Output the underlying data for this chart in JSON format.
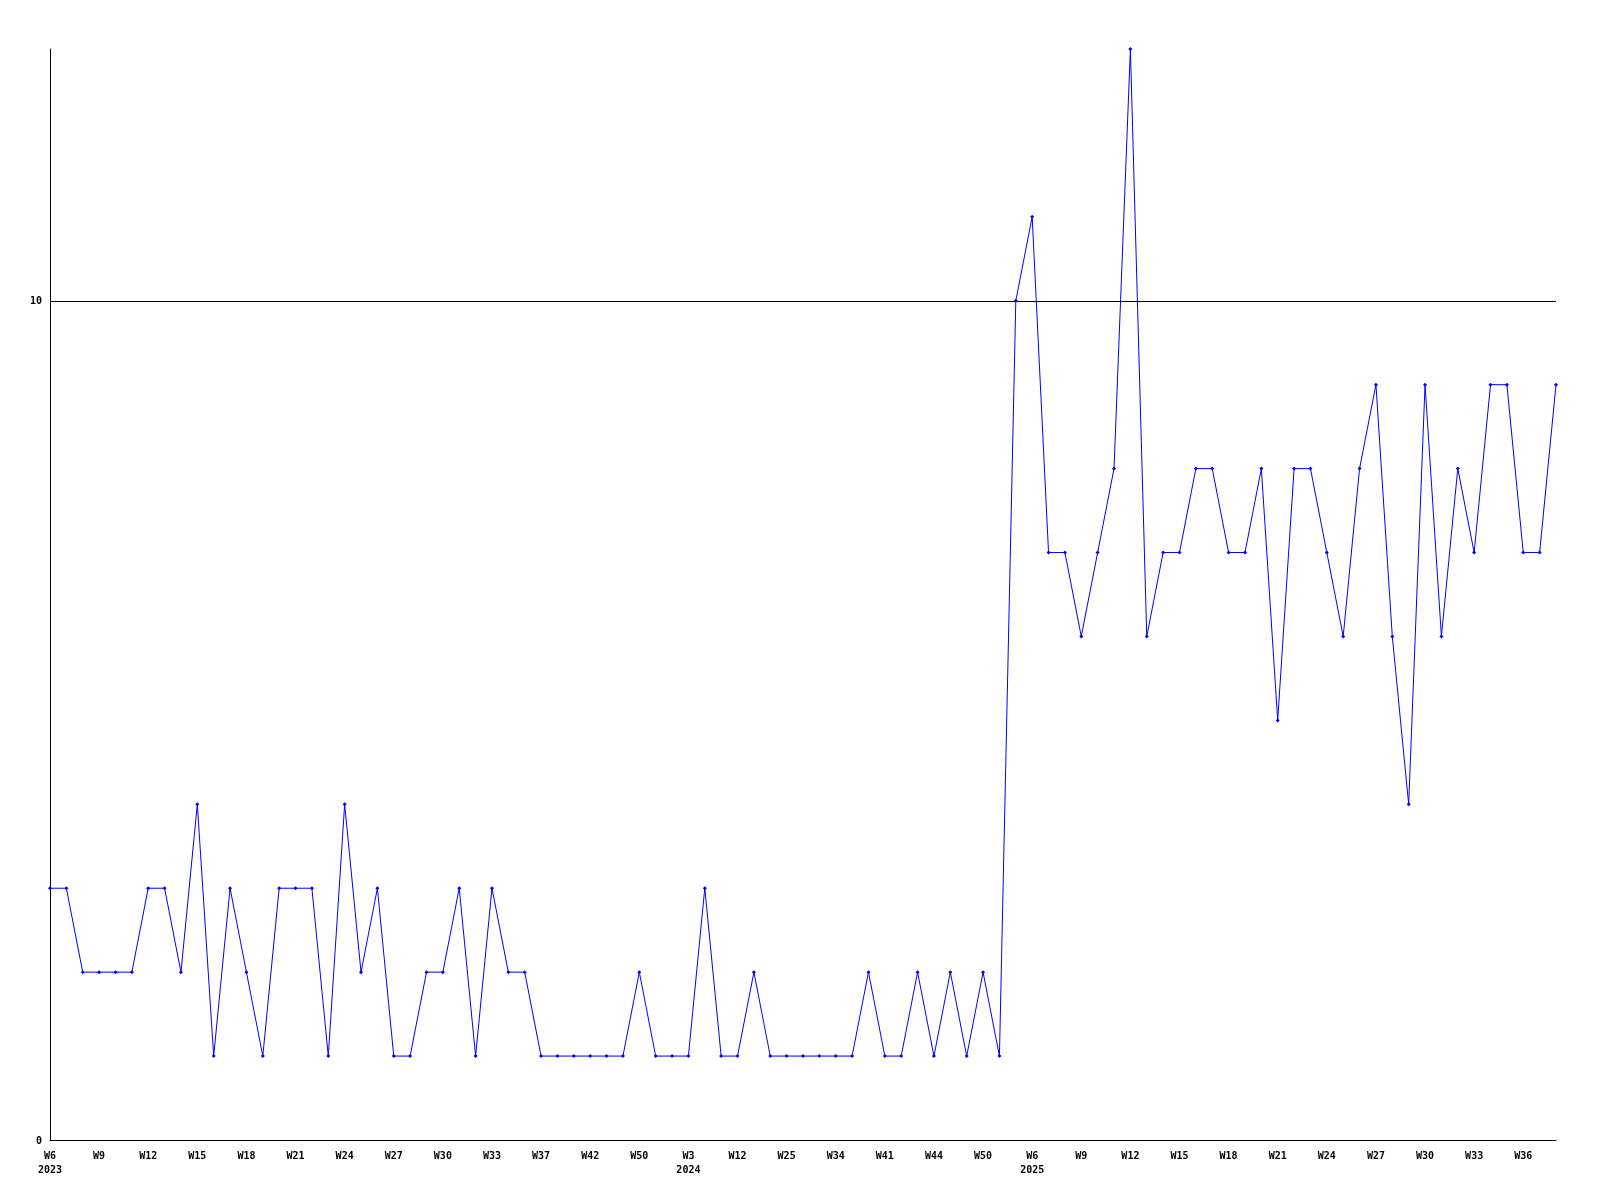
{
  "chart_data": {
    "type": "line",
    "categories": [
      "W6\n2023",
      null,
      null,
      "W9",
      null,
      null,
      "W12",
      null,
      null,
      "W15",
      null,
      null,
      "W18",
      null,
      null,
      "W21",
      null,
      null,
      "W24",
      null,
      null,
      "W27",
      null,
      null,
      "W30",
      null,
      null,
      "W33",
      null,
      null,
      "W37",
      null,
      null,
      "W42",
      null,
      null,
      "W50",
      null,
      null,
      "W3\n2024",
      null,
      null,
      "W12",
      null,
      null,
      "W25",
      null,
      null,
      "W34",
      null,
      null,
      "W41",
      null,
      null,
      "W44",
      null,
      null,
      "W50",
      null,
      null,
      "W6\n2025",
      null,
      null,
      "W9",
      null,
      null,
      "W12",
      null,
      null,
      "W15",
      null,
      null,
      "W18",
      null,
      null,
      "W21",
      null,
      null,
      "W24",
      null,
      null,
      "W27",
      null,
      null,
      "W30",
      null,
      null,
      "W33",
      null,
      null,
      "W36",
      null,
      null
    ],
    "series": [
      {
        "color": "#0000ff",
        "values": [
          3,
          3,
          2,
          2,
          2,
          2,
          3,
          3,
          2,
          4,
          1,
          3,
          2,
          1,
          3,
          3,
          3,
          1,
          4,
          2,
          3,
          1,
          1,
          2,
          2,
          3,
          1,
          3,
          2,
          2,
          1,
          1,
          1,
          1,
          1,
          1,
          2,
          1,
          1,
          1,
          3,
          1,
          1,
          2,
          1,
          1,
          1,
          1,
          1,
          1,
          2,
          1,
          1,
          2,
          1,
          2,
          1,
          2,
          1,
          10,
          11,
          7,
          7,
          6,
          7,
          8,
          13,
          6,
          7,
          7,
          8,
          8,
          7,
          7,
          8,
          5,
          8,
          8,
          7,
          6,
          8,
          9,
          6,
          4,
          9,
          6,
          8,
          7,
          9,
          9,
          7,
          7,
          9
        ]
      }
    ],
    "ylim": [
      0,
      13
    ],
    "yticks": [
      0,
      10
    ],
    "grid": "y",
    "marker": "diamond",
    "line_style": "solid"
  }
}
